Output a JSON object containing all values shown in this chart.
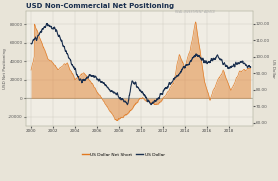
{
  "title": "USD Non-Commercial Net Positioning",
  "title_color": "#1a2f4e",
  "bg_color": "#e8e4d8",
  "plot_bg_color": "#f0ede4",
  "left_ylabel": "USD Net Positioning",
  "right_ylabel": "US Dollar",
  "left_ylim": [
    -30000,
    95000
  ],
  "right_ylim": [
    58,
    128
  ],
  "left_yticks": [
    -20000,
    0,
    20000,
    40000,
    60000,
    80000
  ],
  "right_yticks": [
    60.0,
    70.0,
    80.0,
    90.0,
    100.0,
    110.0,
    120.0
  ],
  "xticks": [
    2000,
    2002,
    2004,
    2006,
    2008,
    2010,
    2012,
    2014,
    2016,
    2018
  ],
  "legend_labels": [
    "US Dollar Net Short",
    "US Dollar"
  ],
  "orange_color": "#e07820",
  "navy_color": "#1a2f4e",
  "grid_color": "#d0ccc0",
  "watermark": "REAL INVESTMENT ADVICE"
}
